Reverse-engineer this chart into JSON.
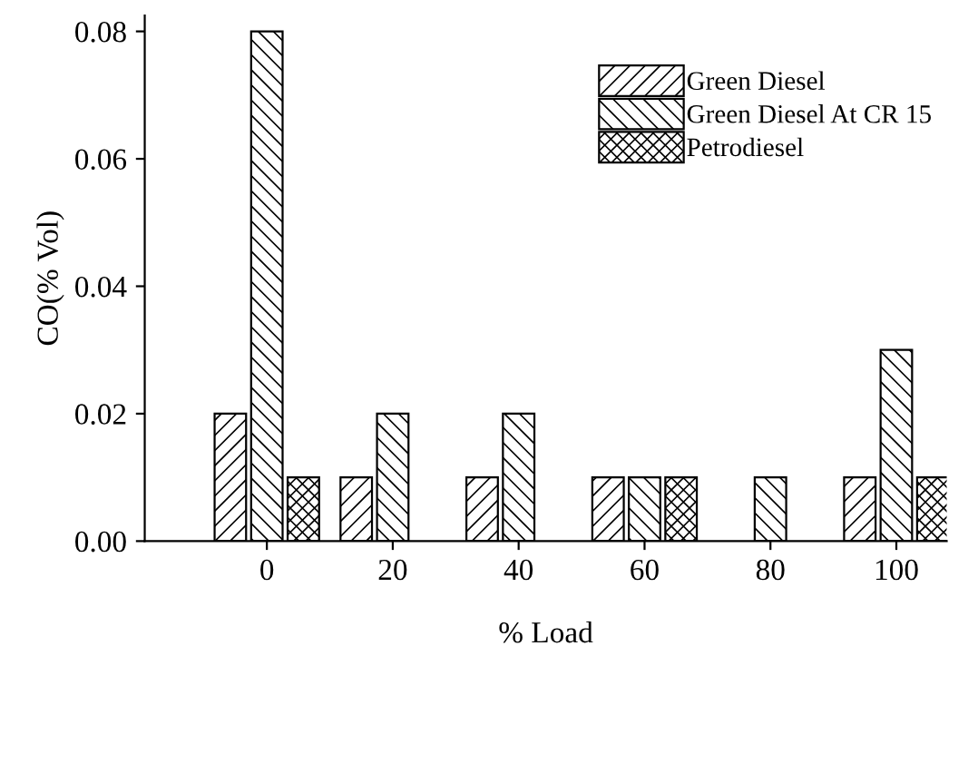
{
  "chart_data": {
    "type": "bar",
    "xlabel": "% Load",
    "ylabel": "CO(% Vol)",
    "categories": [
      "0",
      "20",
      "40",
      "60",
      "80",
      "100"
    ],
    "series": [
      {
        "name": "Green Diesel",
        "color": "#000000",
        "values": [
          0.02,
          0.01,
          0.01,
          0.01,
          null,
          0.01
        ]
      },
      {
        "name": "Green Diesel At CR 15",
        "color": "#000000",
        "values": [
          0.08,
          0.02,
          0.02,
          0.01,
          0.01,
          0.03
        ]
      },
      {
        "name": "Petrodiesel",
        "color": "#000000",
        "values": [
          0.01,
          null,
          null,
          0.01,
          null,
          0.01
        ]
      }
    ],
    "ylim": [
      0,
      0.0825
    ],
    "yticks": [
      {
        "value": 0,
        "label": "0.00"
      },
      {
        "value": 0.02,
        "label": "0.02"
      },
      {
        "value": 0.04,
        "label": "0.04"
      },
      {
        "value": 0.06,
        "label": "0.06"
      },
      {
        "value": 0.08,
        "label": "0.08"
      }
    ],
    "legend": "top right",
    "grid": false
  }
}
